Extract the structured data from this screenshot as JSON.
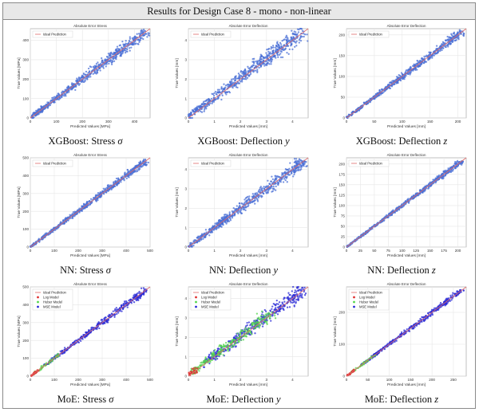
{
  "header": {
    "title": "Results for Design Case 8 - mono - non-linear"
  },
  "colors": {
    "scatter": "#4a6fd6",
    "ideal_line": "#e06a6a",
    "log": "#e03030",
    "huber": "#52d64a",
    "mse": "#2a2ad6"
  },
  "plot_text": {
    "xlabel_stress": "Predicted Values [MPa]",
    "ylabel_stress": "True Values [MPa]",
    "xlabel_defl": "Predicted Values [mm]",
    "ylabel_defl": "True Values [mm]",
    "title_stress": "Absolute Error Stress",
    "title_defl": "Absolute Error Deflection"
  },
  "legend": {
    "ideal": "Ideal Prediction",
    "log": "Log Model",
    "huber": "Huber Model",
    "mse": "MSE Model"
  },
  "captions": [
    [
      "XGBoost: Stress ",
      "σ"
    ],
    [
      "XGBoost: Deflection ",
      "y"
    ],
    [
      "XGBoost: Deflection ",
      "z"
    ],
    [
      "NN: Stress ",
      "σ"
    ],
    [
      "NN: Deflection ",
      "y"
    ],
    [
      "NN: Deflection ",
      "z"
    ],
    [
      "MoE: Stress ",
      "σ"
    ],
    [
      "MoE: Deflection ",
      "y"
    ],
    [
      "MoE: Deflection ",
      "z"
    ]
  ],
  "chart_data": [
    {
      "type": "scatter",
      "title": "Absolute Error Stress",
      "xlabel": "Predicted Values [MPa]",
      "ylabel": "True Values [MPa]",
      "xticks": [
        "0",
        "100",
        "200",
        "300",
        "400"
      ],
      "yticks": [
        "0",
        "100",
        "200",
        "300",
        "400"
      ],
      "lim": [
        0,
        460
      ],
      "spread": 0.07,
      "legend": [
        "Ideal Prediction"
      ],
      "moe": false
    },
    {
      "type": "scatter",
      "title": "Absolute Error Deflection",
      "xlabel": "Predicted Values [mm]",
      "ylabel": "True Values [mm]",
      "xticks": [
        "0",
        "1",
        "2",
        "3",
        "4"
      ],
      "yticks": [
        "0",
        "1",
        "2",
        "3",
        "4"
      ],
      "lim": [
        0,
        4.6
      ],
      "spread": 0.09,
      "legend": [
        "Ideal Prediction"
      ],
      "moe": false
    },
    {
      "type": "scatter",
      "title": "Absolute Error Deflection",
      "xlabel": "Predicted Values [mm]",
      "ylabel": "True Values [mm]",
      "xticks": [
        "0",
        "50",
        "100",
        "150",
        "200"
      ],
      "yticks": [
        "0",
        "50",
        "100",
        "150",
        "200"
      ],
      "lim": [
        0,
        215
      ],
      "spread": 0.05,
      "legend": [
        "Ideal Prediction"
      ],
      "moe": false
    },
    {
      "type": "scatter",
      "title": "Absolute Error Stress",
      "xlabel": "Predicted Values [MPa]",
      "ylabel": "True Values [MPa]",
      "xticks": [
        "0",
        "100",
        "200",
        "300",
        "400",
        "500"
      ],
      "yticks": [
        "0",
        "100",
        "200",
        "300",
        "400",
        "500"
      ],
      "lim": [
        0,
        500
      ],
      "spread": 0.04,
      "legend": [
        "Ideal Prediction"
      ],
      "moe": false
    },
    {
      "type": "scatter",
      "title": "Absolute Error Deflection",
      "xlabel": "Predicted Values [mm]",
      "ylabel": "True Values [mm]",
      "xticks": [
        "0",
        "1",
        "2",
        "3",
        "4"
      ],
      "yticks": [
        "0",
        "1",
        "2",
        "3",
        "4"
      ],
      "lim": [
        0,
        4.6
      ],
      "spread": 0.08,
      "legend": [
        "Ideal Prediction"
      ],
      "moe": false
    },
    {
      "type": "scatter",
      "title": "Absolute Error Deflection",
      "xlabel": "Predicted Values [mm]",
      "ylabel": "True Values [mm]",
      "xticks": [
        "0",
        "25",
        "50",
        "75",
        "100",
        "125",
        "150",
        "175",
        "200"
      ],
      "yticks": [
        "0",
        "25",
        "50",
        "75",
        "100",
        "125",
        "150",
        "175",
        "200"
      ],
      "lim": [
        0,
        215
      ],
      "spread": 0.03,
      "legend": [
        "Ideal Prediction"
      ],
      "moe": false
    },
    {
      "type": "scatter",
      "title": "Absolute Error Stress",
      "xlabel": "Predicted Values [MPa]",
      "ylabel": "True Values [MPa]",
      "xticks": [
        "0",
        "100",
        "200",
        "300",
        "400",
        "500"
      ],
      "yticks": [
        "0",
        "100",
        "200",
        "300",
        "400",
        "500"
      ],
      "lim": [
        0,
        500
      ],
      "spread": 0.04,
      "legend": [
        "Ideal Prediction",
        "Log Model",
        "Huber Model",
        "MSE Model"
      ],
      "moe": true
    },
    {
      "type": "scatter",
      "title": "Absolute Error Deflection",
      "xlabel": "Predicted Values [mm]",
      "ylabel": "True Values [mm]",
      "xticks": [
        "0",
        "1",
        "2",
        "3",
        "4"
      ],
      "yticks": [
        "0",
        "1",
        "2",
        "3",
        "4"
      ],
      "lim": [
        0,
        4.6
      ],
      "spread": 0.09,
      "legend": [
        "Ideal Prediction",
        "Log Model",
        "Huber Model",
        "MSE Model"
      ],
      "moe": true
    },
    {
      "type": "scatter",
      "title": "Absolute Error Deflection",
      "xlabel": "Predicted Values [mm]",
      "ylabel": "True Values [mm]",
      "xticks": [
        "0",
        "50",
        "100",
        "150",
        "200",
        "250"
      ],
      "yticks": [
        "0",
        "100",
        "200"
      ],
      "lim": [
        0,
        280
      ],
      "spread": 0.03,
      "legend": [
        "Ideal Prediction",
        "Log Model",
        "Huber Model",
        "MSE Model"
      ],
      "moe": true
    }
  ]
}
